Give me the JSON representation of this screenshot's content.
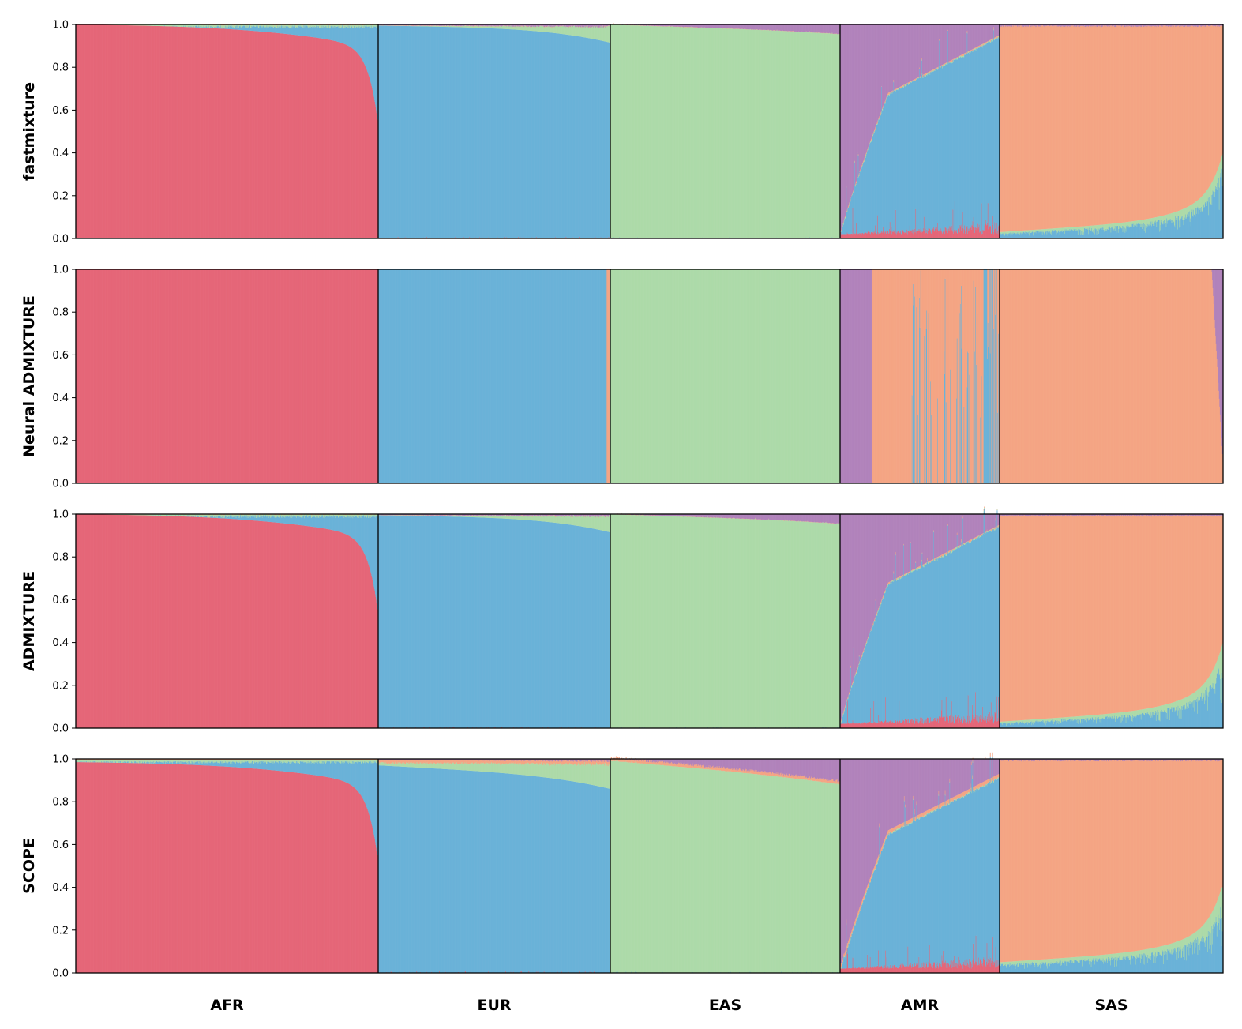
{
  "colors": {
    "red": "#e56678",
    "blue": "#6ab2d8",
    "green": "#addaa9",
    "purple": "#b183bb",
    "orange": "#f4a584"
  },
  "chart_data": {
    "type": "stacked-bar",
    "description_axis": "ancestry proportion per individual, sorted within population",
    "y_ticks": [
      "0.0",
      "0.2",
      "0.4",
      "0.6",
      "0.8",
      "1.0"
    ],
    "ylim": [
      0,
      1
    ],
    "grid": false,
    "groups": [
      {
        "label": "AFR",
        "count": 661
      },
      {
        "label": "EUR",
        "count": 503
      },
      {
        "label": "EAS",
        "count": 504
      },
      {
        "label": "AMR",
        "count": 347
      },
      {
        "label": "SAS",
        "count": 489
      }
    ],
    "components": [
      "red",
      "blue",
      "green",
      "orange",
      "purple"
    ],
    "panels": [
      {
        "method": "fastmixture",
        "groups": {
          "AFR": {
            "dominant": "red",
            "min_dominant": 0.55,
            "secondary": "blue"
          },
          "EUR": {
            "dominant": "blue",
            "min_dominant": 0.9,
            "secondary": "green"
          },
          "EAS": {
            "dominant": "green",
            "min_dominant": 0.96,
            "secondary": "purple"
          },
          "AMR": {
            "blue_range": [
              0.02,
              0.95
            ],
            "red_max": 0.15,
            "rest": "purple"
          },
          "SAS": {
            "dominant": "orange",
            "blue_green_range": [
              0.03,
              0.38
            ]
          }
        }
      },
      {
        "method": "Neural ADMIXTURE",
        "groups": {
          "AFR": {
            "dominant": "red",
            "min_dominant": 1.0
          },
          "EUR": {
            "dominant": "blue",
            "min_dominant": 1.0,
            "tail": "orange"
          },
          "EAS": {
            "dominant": "green",
            "min_dominant": 1.0
          },
          "AMR": {
            "purple_fraction_of_individuals": 0.2,
            "rest": "orange",
            "blue_streaks": true
          },
          "SAS": {
            "dominant": "orange",
            "tail": "purple"
          }
        }
      },
      {
        "method": "ADMIXTURE",
        "groups": {
          "AFR": {
            "dominant": "red",
            "min_dominant": 0.55,
            "secondary": "blue"
          },
          "EUR": {
            "dominant": "blue",
            "min_dominant": 0.9,
            "secondary": "green"
          },
          "EAS": {
            "dominant": "green",
            "min_dominant": 0.96,
            "secondary": "purple"
          },
          "AMR": {
            "blue_range": [
              0.02,
              0.95
            ],
            "red_max": 0.15,
            "rest": "purple"
          },
          "SAS": {
            "dominant": "orange",
            "blue_green_range": [
              0.03,
              0.38
            ]
          }
        }
      },
      {
        "method": "SCOPE",
        "groups": {
          "AFR": {
            "dominant": "red",
            "min_dominant": 0.55,
            "secondary": "blue"
          },
          "EUR": {
            "dominant": "blue",
            "min_dominant": 0.86,
            "secondary": "green"
          },
          "EAS": {
            "dominant": "green",
            "min_dominant": 0.88,
            "secondary": "orange"
          },
          "AMR": {
            "blue_range": [
              0.02,
              0.93
            ],
            "red_max": 0.15,
            "rest": "purple"
          },
          "SAS": {
            "dominant": "orange",
            "blue_green_range": [
              0.05,
              0.38
            ]
          }
        }
      }
    ]
  }
}
